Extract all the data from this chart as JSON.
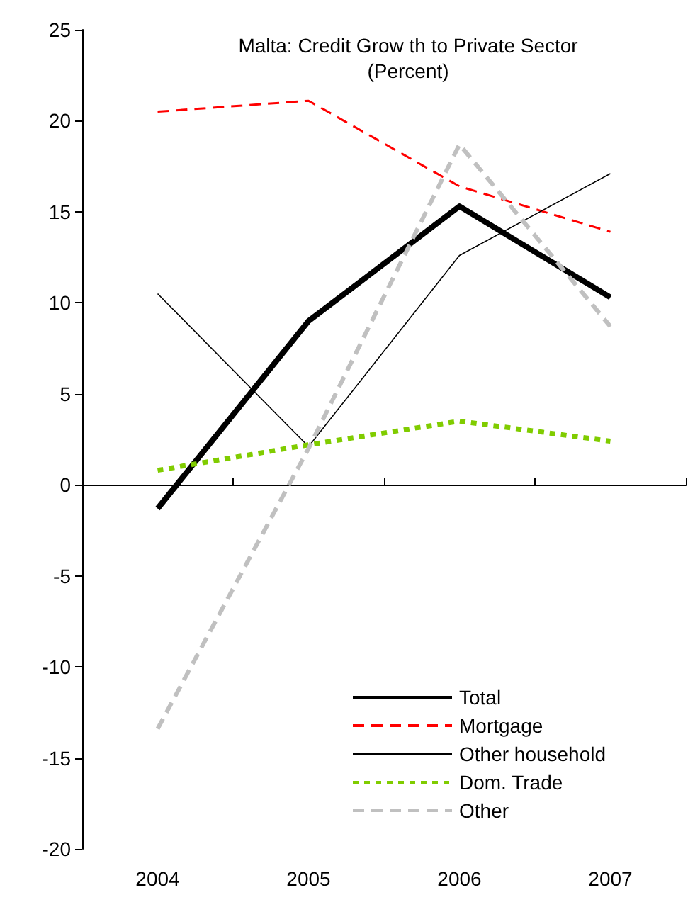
{
  "chart_data": {
    "type": "line",
    "title": "Malta: Credit Grow th to Private Sector",
    "subtitle": "(Percent)",
    "categories": [
      "2004",
      "2005",
      "2006",
      "2007"
    ],
    "series": [
      {
        "name": "Total",
        "color": "#000000",
        "values": [
          -1.3,
          9.0,
          15.3,
          10.3
        ]
      },
      {
        "name": "Mortgage",
        "color": "#ff0000",
        "values": [
          20.5,
          21.1,
          16.4,
          13.9
        ],
        "line_style": "dashed"
      },
      {
        "name": "Other household",
        "color": "#000000",
        "values": [
          10.5,
          2.1,
          12.6,
          17.1
        ]
      },
      {
        "name": "Dom. Trade",
        "color": "#80cc00",
        "values": [
          0.8,
          2.2,
          3.5,
          2.4
        ],
        "line_style": "dotted"
      },
      {
        "name": "Other",
        "color": "#c0c0c0",
        "values": [
          -13.4,
          2.0,
          18.7,
          8.7
        ],
        "line_style": "dashed"
      }
    ],
    "ylim": [
      -20,
      25
    ],
    "yticks": [
      -20,
      -15,
      -10,
      -5,
      0,
      5,
      10,
      15,
      20,
      25
    ],
    "legend": "bottom right",
    "marker": "none",
    "line_style": "solid"
  }
}
